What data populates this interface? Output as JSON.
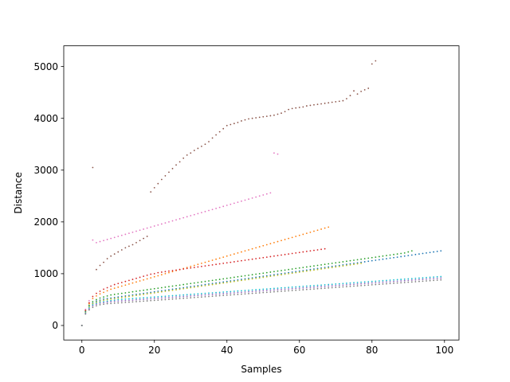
{
  "chart_data": {
    "type": "scatter",
    "title": "",
    "xlabel": "Samples",
    "ylabel": "Distance",
    "xlim": [
      -5,
      104
    ],
    "ylim": [
      -280,
      5400
    ],
    "xticks": [
      0,
      20,
      40,
      60,
      80,
      100
    ],
    "yticks": [
      0,
      1000,
      2000,
      3000,
      4000,
      5000
    ],
    "grid": false,
    "legend": "none",
    "marker": "small dot",
    "series": [
      {
        "color": "#8c564b",
        "values": [
          0,
          300,
          430,
          3050,
          1080,
          1160,
          1220,
          1290,
          1340,
          1380,
          1420,
          1460,
          1500,
          1530,
          1560,
          1600,
          1640,
          1680,
          1720,
          2580,
          2660,
          2740,
          2820,
          2890,
          2960,
          3030,
          3100,
          3160,
          3230,
          3290,
          3330,
          3380,
          3420,
          3460,
          3500,
          3550,
          3620,
          3680,
          3740,
          3800,
          3860,
          3880,
          3900,
          3920,
          3950,
          3970,
          3990,
          4000,
          4010,
          4020,
          4030,
          4040,
          4050,
          4060,
          4080,
          4100,
          4130,
          4170,
          4190,
          4200,
          4210,
          4220,
          4240,
          4250,
          4260,
          4270,
          4280,
          4290,
          4300,
          4310,
          4320,
          4330,
          4340,
          4380,
          4440,
          4530,
          4470,
          4520,
          4550,
          4580,
          5050,
          5110
        ]
      },
      {
        "color": "#e377c2",
        "values": [
          0,
          310,
          480,
          1650,
          1600,
          1620,
          1640,
          1660,
          1680,
          1700,
          1720,
          1740,
          1760,
          1780,
          1800,
          1820,
          1840,
          1860,
          1880,
          1900,
          1920,
          1940,
          1960,
          1980,
          2000,
          2020,
          2040,
          2060,
          2080,
          2100,
          2120,
          2140,
          2160,
          2180,
          2200,
          2220,
          2240,
          2260,
          2280,
          2300,
          2320,
          2340,
          2360,
          2380,
          2400,
          2420,
          2440,
          2460,
          2480,
          2500,
          2520,
          2540,
          2560,
          3330,
          3310
        ]
      },
      {
        "color": "#ff7f0e",
        "values": [
          0,
          280,
          420,
          520,
          570,
          610,
          640,
          670,
          700,
          720,
          740,
          760,
          780,
          800,
          820,
          840,
          860,
          880,
          900,
          920,
          940,
          960,
          980,
          1000,
          1020,
          1040,
          1060,
          1080,
          1100,
          1120,
          1140,
          1160,
          1180,
          1200,
          1220,
          1240,
          1260,
          1280,
          1300,
          1320,
          1340,
          1360,
          1380,
          1400,
          1420,
          1440,
          1460,
          1480,
          1500,
          1520,
          1540,
          1560,
          1580,
          1600,
          1620,
          1640,
          1660,
          1680,
          1700,
          1720,
          1740,
          1760,
          1780,
          1800,
          1820,
          1840,
          1860,
          1880,
          1900
        ]
      },
      {
        "color": "#d62728",
        "values": [
          0,
          290,
          440,
          560,
          620,
          660,
          700,
          730,
          760,
          790,
          810,
          830,
          850,
          870,
          890,
          910,
          930,
          950,
          970,
          990,
          1000,
          1020,
          1030,
          1040,
          1050,
          1060,
          1070,
          1080,
          1090,
          1100,
          1110,
          1120,
          1130,
          1140,
          1150,
          1160,
          1170,
          1180,
          1190,
          1200,
          1210,
          1220,
          1230,
          1240,
          1250,
          1260,
          1270,
          1280,
          1290,
          1300,
          1310,
          1320,
          1330,
          1340,
          1350,
          1360,
          1370,
          1380,
          1390,
          1400,
          1410,
          1420,
          1430,
          1440,
          1450,
          1460,
          1470,
          1480
        ]
      },
      {
        "color": "#2ca02c",
        "values": [
          0,
          270,
          390,
          460,
          500,
          530,
          550,
          570,
          590,
          600,
          610,
          620,
          630,
          640,
          650,
          660,
          670,
          680,
          690,
          700,
          710,
          720,
          730,
          740,
          750,
          760,
          770,
          780,
          790,
          800,
          810,
          820,
          830,
          840,
          850,
          860,
          870,
          880,
          890,
          900,
          910,
          920,
          930,
          940,
          950,
          960,
          970,
          980,
          990,
          1000,
          1010,
          1020,
          1030,
          1040,
          1050,
          1060,
          1070,
          1080,
          1090,
          1100,
          1110,
          1120,
          1130,
          1140,
          1150,
          1160,
          1170,
          1180,
          1190,
          1200,
          1210,
          1220,
          1230,
          1240,
          1250,
          1260,
          1270,
          1280,
          1290,
          1300,
          1310,
          1320,
          1330,
          1340,
          1350,
          1360,
          1370,
          1380,
          1390,
          1400,
          1420,
          1440
        ]
      },
      {
        "color": "#1f77b4",
        "values": [
          0,
          260,
          370,
          430,
          470,
          490,
          510,
          520,
          530,
          540,
          550,
          560,
          570,
          580,
          590,
          600,
          610,
          620,
          630,
          640,
          650,
          660,
          670,
          680,
          690,
          700,
          710,
          720,
          730,
          740,
          750,
          760,
          770,
          780,
          790,
          800,
          810,
          820,
          830,
          840,
          850,
          860,
          870,
          880,
          890,
          900,
          910,
          920,
          930,
          940,
          950,
          960,
          970,
          980,
          990,
          1000,
          1010,
          1020,
          1030,
          1040,
          1050,
          1060,
          1070,
          1080,
          1090,
          1100,
          1110,
          1120,
          1130,
          1140,
          1150,
          1160,
          1170,
          1180,
          1190,
          1200,
          1210,
          1220,
          1230,
          1240,
          1250,
          1260,
          1270,
          1280,
          1290,
          1300,
          1310,
          1320,
          1330,
          1340,
          1350,
          1360,
          1370,
          1380,
          1390,
          1400,
          1410,
          1420,
          1430,
          1440
        ]
      },
      {
        "color": "#bcbd22",
        "values": [
          0,
          250,
          360,
          420,
          450,
          470,
          490,
          500,
          510,
          520,
          530,
          540,
          550,
          560,
          570,
          580,
          590,
          600,
          610,
          620,
          630,
          640,
          650,
          660,
          670,
          680,
          690,
          700,
          710,
          720,
          730,
          740,
          750,
          760,
          770,
          780,
          790,
          800,
          810,
          820,
          830,
          840,
          850,
          860,
          870,
          880,
          890,
          900,
          910,
          920,
          930,
          940,
          950,
          960,
          970,
          980,
          990,
          1000,
          1010,
          1020,
          1030,
          1040,
          1050,
          1060,
          1070,
          1080,
          1090,
          1100,
          1110,
          1120,
          1130,
          1140,
          1150,
          1160,
          1170,
          1180,
          1190,
          1200
        ]
      },
      {
        "color": "#17becf",
        "values": [
          0,
          240,
          340,
          400,
          430,
          450,
          460,
          470,
          480,
          490,
          500,
          505,
          510,
          515,
          520,
          525,
          530,
          535,
          540,
          545,
          550,
          555,
          560,
          565,
          570,
          575,
          580,
          585,
          590,
          595,
          600,
          605,
          610,
          615,
          620,
          625,
          630,
          635,
          640,
          645,
          650,
          655,
          660,
          665,
          670,
          675,
          680,
          685,
          690,
          695,
          700,
          705,
          710,
          715,
          720,
          725,
          730,
          735,
          740,
          745,
          750,
          755,
          760,
          765,
          770,
          775,
          780,
          785,
          790,
          795,
          800,
          805,
          810,
          815,
          820,
          825,
          830,
          835,
          840,
          845,
          850,
          855,
          860,
          865,
          870,
          875,
          880,
          885,
          890,
          895,
          900,
          905,
          910,
          915,
          920,
          925,
          930,
          935,
          940,
          945
        ]
      },
      {
        "color": "#9467bd",
        "values": [
          0,
          230,
          320,
          380,
          410,
          430,
          440,
          450,
          460,
          465,
          470,
          475,
          480,
          485,
          490,
          495,
          500,
          505,
          510,
          515,
          520,
          525,
          530,
          535,
          540,
          545,
          550,
          555,
          560,
          565,
          570,
          575,
          580,
          585,
          590,
          595,
          600,
          605,
          610,
          615,
          620,
          625,
          630,
          635,
          640,
          645,
          650,
          655,
          660,
          665,
          670,
          675,
          680,
          685,
          690,
          695,
          700,
          705,
          710,
          715,
          720,
          725,
          730,
          735,
          740,
          745,
          750,
          755,
          760,
          765,
          770,
          775,
          780,
          785,
          790,
          795,
          800,
          805,
          810,
          815,
          820,
          825,
          830,
          835,
          840,
          845,
          850,
          855,
          860,
          865,
          870,
          875,
          880,
          885,
          890,
          895,
          900,
          905,
          910,
          915
        ]
      },
      {
        "color": "#7f7f7f",
        "values": [
          0,
          220,
          300,
          350,
          380,
          400,
          410,
          420,
          425,
          430,
          435,
          440,
          445,
          450,
          455,
          460,
          465,
          470,
          475,
          480,
          485,
          490,
          495,
          500,
          505,
          510,
          515,
          520,
          525,
          530,
          535,
          540,
          545,
          550,
          555,
          560,
          565,
          570,
          575,
          580,
          585,
          590,
          595,
          600,
          605,
          610,
          615,
          620,
          625,
          630,
          635,
          640,
          645,
          650,
          655,
          660,
          665,
          670,
          675,
          680,
          685,
          690,
          695,
          700,
          705,
          710,
          715,
          720,
          725,
          730,
          735,
          740,
          745,
          750,
          755,
          760,
          765,
          770,
          775,
          780,
          785,
          790,
          795,
          800,
          805,
          810,
          815,
          820,
          825,
          830,
          835,
          840,
          845,
          850,
          855,
          860,
          865,
          870,
          875,
          880
        ]
      }
    ]
  }
}
